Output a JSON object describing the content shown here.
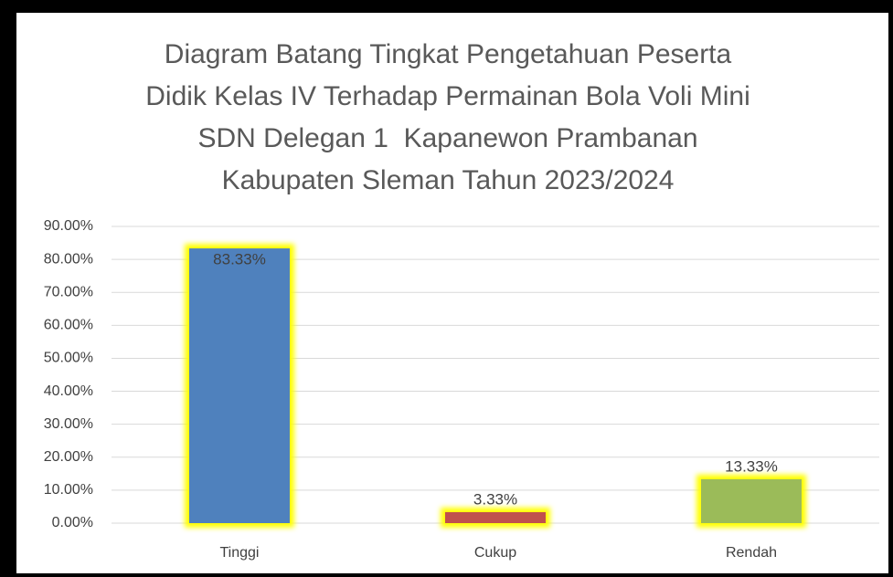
{
  "chart_data": {
    "type": "bar",
    "title": [
      "Diagram Batang Tingkat Pengetahuan Peserta",
      "Didik Kelas IV Terhadap Permainan Bola Voli Mini",
      "SDN Delegan 1  Kapanewon Prambanan",
      "Kabupaten Sleman Tahun 2023/2024"
    ],
    "categories": [
      "Tinggi",
      "Cukup",
      "Rendah"
    ],
    "values": [
      83.33,
      3.33,
      13.33
    ],
    "value_labels": [
      "83.33%",
      "3.33%",
      "13.33%"
    ],
    "colors": [
      "#4f81bd",
      "#c0504d",
      "#9bbb59"
    ],
    "ylim": [
      0,
      90
    ],
    "yticks": [
      {
        "value": 0,
        "label": "0.00%"
      },
      {
        "value": 10,
        "label": "10.00%"
      },
      {
        "value": 20,
        "label": "20.00%"
      },
      {
        "value": 30,
        "label": "30.00%"
      },
      {
        "value": 40,
        "label": "40.00%"
      },
      {
        "value": 50,
        "label": "50.00%"
      },
      {
        "value": 60,
        "label": "60.00%"
      },
      {
        "value": 70,
        "label": "70.00%"
      },
      {
        "value": 80,
        "label": "80.00%"
      },
      {
        "value": 90,
        "label": "90.00%"
      }
    ],
    "grid": true
  }
}
